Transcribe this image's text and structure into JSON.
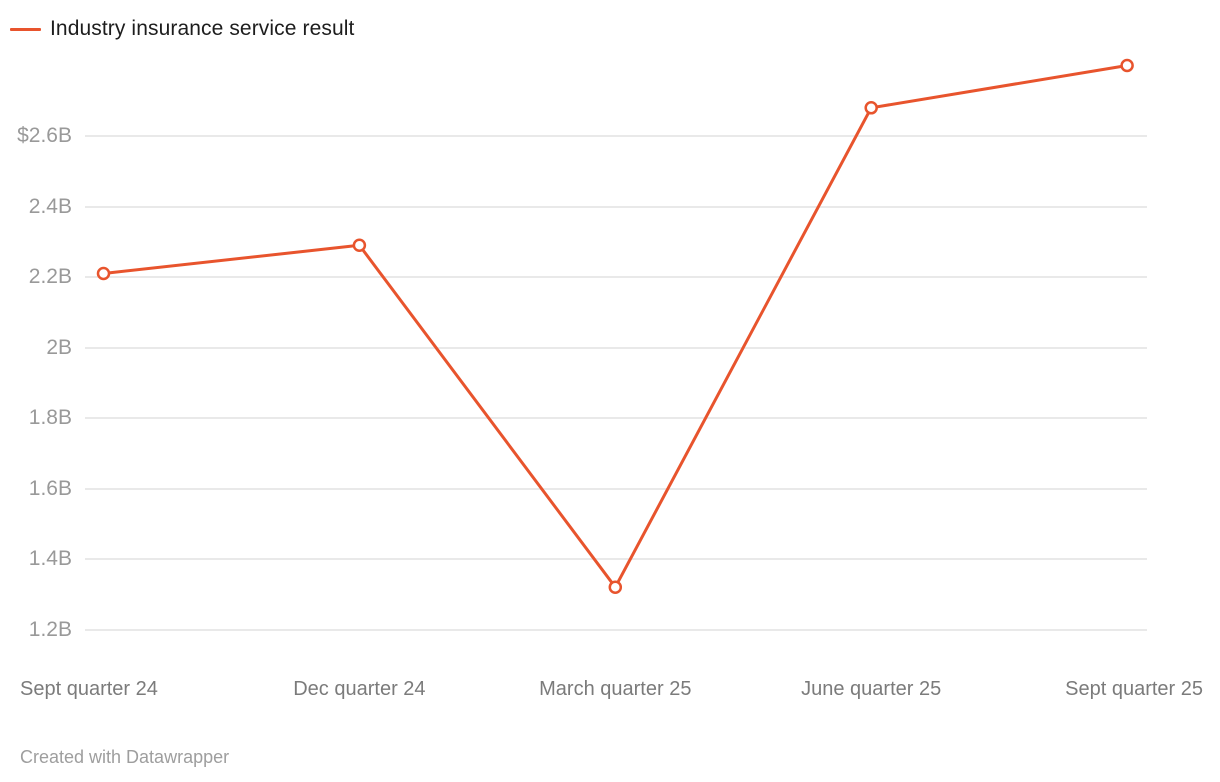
{
  "legend": {
    "label": "Industry insurance service result"
  },
  "footer": {
    "credit": "Created with Datawrapper"
  },
  "colors": {
    "line": "#e8542d",
    "legend_text": "#1d1d1d",
    "y_axis_text": "#999999",
    "x_axis_text": "#7b7b7b",
    "grid": "#e9e9e9",
    "credit_text": "#9e9e9e",
    "background": "#ffffff"
  },
  "chart_data": {
    "type": "line",
    "title": "Industry insurance service result",
    "categories": [
      "Sept quarter 24",
      "Dec quarter 24",
      "March quarter 25",
      "June quarter 25",
      "Sept quarter 25"
    ],
    "series": [
      {
        "name": "Industry insurance service result",
        "values": [
          2.21,
          2.29,
          1.32,
          2.68,
          2.8
        ]
      }
    ],
    "value_unit": "$ billions",
    "y_ticks": [
      {
        "label": "$2.6B",
        "value": 2.6
      },
      {
        "label": "2.4B",
        "value": 2.4
      },
      {
        "label": "2.2B",
        "value": 2.2
      },
      {
        "label": "2B",
        "value": 2.0
      },
      {
        "label": "1.8B",
        "value": 1.8
      },
      {
        "label": "1.6B",
        "value": 1.6
      },
      {
        "label": "1.4B",
        "value": 1.4
      },
      {
        "label": "1.2B",
        "value": 1.2
      }
    ],
    "ylim": [
      1.15,
      2.85
    ],
    "grid": true,
    "legend_position": "top-left",
    "marker": "open-circle",
    "xlabel": "",
    "ylabel": ""
  }
}
